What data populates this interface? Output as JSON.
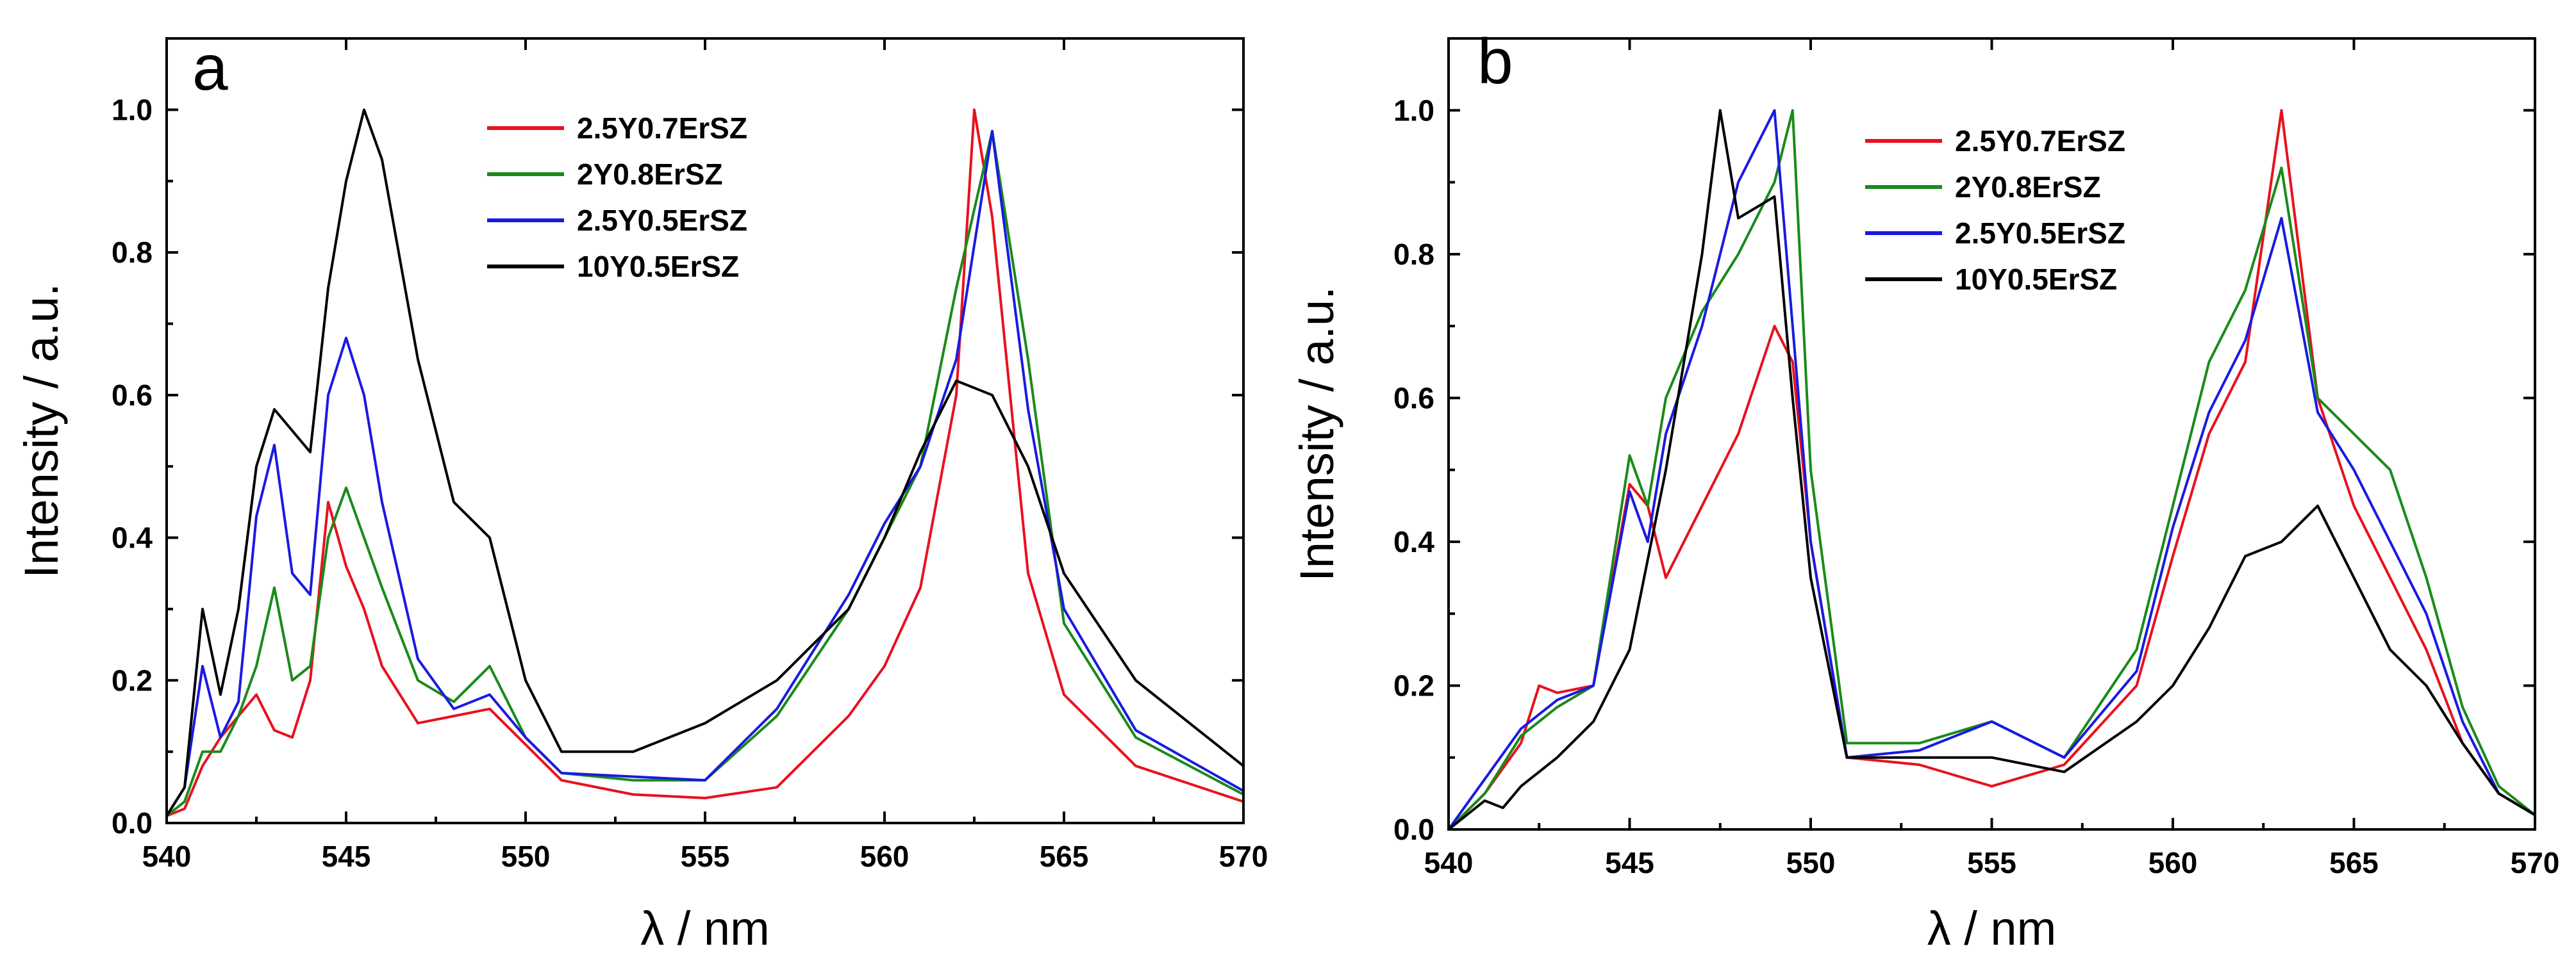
{
  "chart_data": [
    {
      "type": "line",
      "panel_label": "a",
      "xlabel": "λ / nm",
      "ylabel": "Intensity / a.u.",
      "xlim": [
        540,
        570
      ],
      "ylim": [
        0,
        1.1
      ],
      "xticks": [
        540,
        545,
        550,
        555,
        560,
        565,
        570
      ],
      "yticks": [
        0.0,
        0.2,
        0.4,
        0.6,
        0.8,
        1.0
      ],
      "xtick_labels": [
        "540",
        "545",
        "550",
        "555",
        "560",
        "565",
        "570"
      ],
      "ytick_labels": [
        "0.0",
        "0.2",
        "0.4",
        "0.6",
        "0.8",
        "1.0"
      ],
      "legend_position": "top-center",
      "series": [
        {
          "name": "2.5Y0.7ErSZ",
          "color": "#e8111e",
          "points": [
            [
              540,
              0.01
            ],
            [
              540.5,
              0.02
            ],
            [
              541,
              0.08
            ],
            [
              541.5,
              0.12
            ],
            [
              542,
              0.15
            ],
            [
              542.5,
              0.18
            ],
            [
              543,
              0.13
            ],
            [
              543.5,
              0.12
            ],
            [
              544,
              0.2
            ],
            [
              544.5,
              0.45
            ],
            [
              545,
              0.36
            ],
            [
              545.5,
              0.3
            ],
            [
              546,
              0.22
            ],
            [
              547,
              0.14
            ],
            [
              548,
              0.15
            ],
            [
              549,
              0.16
            ],
            [
              550,
              0.11
            ],
            [
              551,
              0.06
            ],
            [
              553,
              0.04
            ],
            [
              555,
              0.035
            ],
            [
              557,
              0.05
            ],
            [
              559,
              0.15
            ],
            [
              560,
              0.22
            ],
            [
              561,
              0.33
            ],
            [
              562,
              0.6
            ],
            [
              562.5,
              1.0
            ],
            [
              563,
              0.85
            ],
            [
              564,
              0.35
            ],
            [
              565,
              0.18
            ],
            [
              567,
              0.08
            ],
            [
              570,
              0.03
            ]
          ]
        },
        {
          "name": "2Y0.8ErSZ",
          "color": "#1a8a1a",
          "points": [
            [
              540,
              0.01
            ],
            [
              540.5,
              0.03
            ],
            [
              541,
              0.1
            ],
            [
              541.5,
              0.1
            ],
            [
              542,
              0.15
            ],
            [
              542.5,
              0.22
            ],
            [
              543,
              0.33
            ],
            [
              543.5,
              0.2
            ],
            [
              544,
              0.22
            ],
            [
              544.5,
              0.4
            ],
            [
              545,
              0.47
            ],
            [
              545.5,
              0.4
            ],
            [
              546,
              0.33
            ],
            [
              547,
              0.2
            ],
            [
              548,
              0.17
            ],
            [
              549,
              0.22
            ],
            [
              550,
              0.12
            ],
            [
              551,
              0.07
            ],
            [
              553,
              0.06
            ],
            [
              555,
              0.06
            ],
            [
              557,
              0.15
            ],
            [
              559,
              0.3
            ],
            [
              560,
              0.4
            ],
            [
              561,
              0.5
            ],
            [
              562,
              0.75
            ],
            [
              563,
              0.97
            ],
            [
              564,
              0.65
            ],
            [
              565,
              0.28
            ],
            [
              567,
              0.12
            ],
            [
              570,
              0.04
            ]
          ]
        },
        {
          "name": "2.5Y0.5ErSZ",
          "color": "#1a1ae0",
          "points": [
            [
              540,
              0.01
            ],
            [
              540.5,
              0.05
            ],
            [
              541,
              0.22
            ],
            [
              541.5,
              0.12
            ],
            [
              542,
              0.17
            ],
            [
              542.5,
              0.43
            ],
            [
              543,
              0.53
            ],
            [
              543.5,
              0.35
            ],
            [
              544,
              0.32
            ],
            [
              544.5,
              0.6
            ],
            [
              545,
              0.68
            ],
            [
              545.5,
              0.6
            ],
            [
              546,
              0.45
            ],
            [
              547,
              0.23
            ],
            [
              548,
              0.16
            ],
            [
              549,
              0.18
            ],
            [
              550,
              0.12
            ],
            [
              551,
              0.07
            ],
            [
              553,
              0.065
            ],
            [
              555,
              0.06
            ],
            [
              557,
              0.16
            ],
            [
              559,
              0.32
            ],
            [
              560,
              0.42
            ],
            [
              561,
              0.5
            ],
            [
              562,
              0.65
            ],
            [
              563,
              0.97
            ],
            [
              564,
              0.58
            ],
            [
              565,
              0.3
            ],
            [
              567,
              0.13
            ],
            [
              570,
              0.045
            ]
          ]
        },
        {
          "name": "10Y0.5ErSZ",
          "color": "#000000",
          "points": [
            [
              540,
              0.01
            ],
            [
              540.5,
              0.05
            ],
            [
              541,
              0.3
            ],
            [
              541.5,
              0.18
            ],
            [
              542,
              0.3
            ],
            [
              542.5,
              0.5
            ],
            [
              543,
              0.58
            ],
            [
              543.5,
              0.55
            ],
            [
              544,
              0.52
            ],
            [
              544.5,
              0.75
            ],
            [
              545,
              0.9
            ],
            [
              545.5,
              1.0
            ],
            [
              546,
              0.93
            ],
            [
              547,
              0.65
            ],
            [
              548,
              0.45
            ],
            [
              549,
              0.4
            ],
            [
              550,
              0.2
            ],
            [
              551,
              0.1
            ],
            [
              553,
              0.1
            ],
            [
              555,
              0.14
            ],
            [
              557,
              0.2
            ],
            [
              559,
              0.3
            ],
            [
              560,
              0.4
            ],
            [
              561,
              0.52
            ],
            [
              562,
              0.62
            ],
            [
              563,
              0.6
            ],
            [
              564,
              0.5
            ],
            [
              565,
              0.35
            ],
            [
              567,
              0.2
            ],
            [
              570,
              0.08
            ]
          ]
        }
      ]
    },
    {
      "type": "line",
      "panel_label": "b",
      "xlabel": "λ / nm",
      "ylabel": "Intensity / a.u.",
      "xlim": [
        540,
        570
      ],
      "ylim": [
        0,
        1.1
      ],
      "xticks": [
        540,
        545,
        550,
        555,
        560,
        565,
        570
      ],
      "yticks": [
        0.0,
        0.2,
        0.4,
        0.6,
        0.8,
        1.0
      ],
      "xtick_labels": [
        "540",
        "545",
        "550",
        "555",
        "560",
        "565",
        "570"
      ],
      "ytick_labels": [
        "0.0",
        "0.2",
        "0.4",
        "0.6",
        "0.8",
        "1.0"
      ],
      "legend_position": "top-center",
      "series": [
        {
          "name": "2.5Y0.7ErSZ",
          "color": "#e8111e",
          "points": [
            [
              540,
              0.0
            ],
            [
              541,
              0.05
            ],
            [
              542,
              0.12
            ],
            [
              542.5,
              0.2
            ],
            [
              543,
              0.19
            ],
            [
              544,
              0.2
            ],
            [
              545,
              0.48
            ],
            [
              545.5,
              0.45
            ],
            [
              546,
              0.35
            ],
            [
              547,
              0.45
            ],
            [
              548,
              0.55
            ],
            [
              549,
              0.7
            ],
            [
              549.5,
              0.65
            ],
            [
              550,
              0.4
            ],
            [
              551,
              0.1
            ],
            [
              553,
              0.09
            ],
            [
              555,
              0.06
            ],
            [
              557,
              0.09
            ],
            [
              559,
              0.2
            ],
            [
              560,
              0.38
            ],
            [
              561,
              0.55
            ],
            [
              562,
              0.65
            ],
            [
              563,
              1.0
            ],
            [
              564,
              0.6
            ],
            [
              565,
              0.45
            ],
            [
              566,
              0.35
            ],
            [
              567,
              0.25
            ],
            [
              568,
              0.12
            ],
            [
              569,
              0.05
            ],
            [
              570,
              0.02
            ]
          ]
        },
        {
          "name": "2Y0.8ErSZ",
          "color": "#1a8a1a",
          "points": [
            [
              540,
              0.0
            ],
            [
              541,
              0.05
            ],
            [
              542,
              0.13
            ],
            [
              543,
              0.17
            ],
            [
              544,
              0.2
            ],
            [
              545,
              0.52
            ],
            [
              545.5,
              0.45
            ],
            [
              546,
              0.6
            ],
            [
              547,
              0.72
            ],
            [
              548,
              0.8
            ],
            [
              549,
              0.9
            ],
            [
              549.5,
              1.0
            ],
            [
              550,
              0.5
            ],
            [
              551,
              0.12
            ],
            [
              553,
              0.12
            ],
            [
              555,
              0.15
            ],
            [
              557,
              0.1
            ],
            [
              559,
              0.25
            ],
            [
              560,
              0.45
            ],
            [
              561,
              0.65
            ],
            [
              562,
              0.75
            ],
            [
              563,
              0.92
            ],
            [
              564,
              0.6
            ],
            [
              565,
              0.55
            ],
            [
              566,
              0.5
            ],
            [
              567,
              0.35
            ],
            [
              568,
              0.17
            ],
            [
              569,
              0.06
            ],
            [
              570,
              0.02
            ]
          ]
        },
        {
          "name": "2.5Y0.5ErSZ",
          "color": "#1a1ae0",
          "points": [
            [
              540,
              0.0
            ],
            [
              541,
              0.07
            ],
            [
              542,
              0.14
            ],
            [
              543,
              0.18
            ],
            [
              544,
              0.2
            ],
            [
              545,
              0.47
            ],
            [
              545.5,
              0.4
            ],
            [
              546,
              0.55
            ],
            [
              547,
              0.7
            ],
            [
              548,
              0.9
            ],
            [
              549,
              1.0
            ],
            [
              549.5,
              0.7
            ],
            [
              550,
              0.4
            ],
            [
              551,
              0.1
            ],
            [
              553,
              0.11
            ],
            [
              555,
              0.15
            ],
            [
              557,
              0.1
            ],
            [
              559,
              0.22
            ],
            [
              560,
              0.42
            ],
            [
              561,
              0.58
            ],
            [
              562,
              0.68
            ],
            [
              563,
              0.85
            ],
            [
              564,
              0.58
            ],
            [
              565,
              0.5
            ],
            [
              566,
              0.4
            ],
            [
              567,
              0.3
            ],
            [
              568,
              0.15
            ],
            [
              569,
              0.05
            ],
            [
              570,
              0.02
            ]
          ]
        },
        {
          "name": "10Y0.5ErSZ",
          "color": "#000000",
          "points": [
            [
              540,
              0.0
            ],
            [
              541,
              0.04
            ],
            [
              541.5,
              0.03
            ],
            [
              542,
              0.06
            ],
            [
              543,
              0.1
            ],
            [
              544,
              0.15
            ],
            [
              545,
              0.25
            ],
            [
              546,
              0.5
            ],
            [
              547,
              0.8
            ],
            [
              547.5,
              1.0
            ],
            [
              548,
              0.85
            ],
            [
              549,
              0.88
            ],
            [
              549.5,
              0.6
            ],
            [
              550,
              0.35
            ],
            [
              551,
              0.1
            ],
            [
              553,
              0.1
            ],
            [
              555,
              0.1
            ],
            [
              557,
              0.08
            ],
            [
              559,
              0.15
            ],
            [
              560,
              0.2
            ],
            [
              561,
              0.28
            ],
            [
              562,
              0.38
            ],
            [
              563,
              0.4
            ],
            [
              564,
              0.45
            ],
            [
              565,
              0.35
            ],
            [
              566,
              0.25
            ],
            [
              567,
              0.2
            ],
            [
              568,
              0.12
            ],
            [
              569,
              0.05
            ],
            [
              570,
              0.02
            ]
          ]
        }
      ]
    }
  ]
}
